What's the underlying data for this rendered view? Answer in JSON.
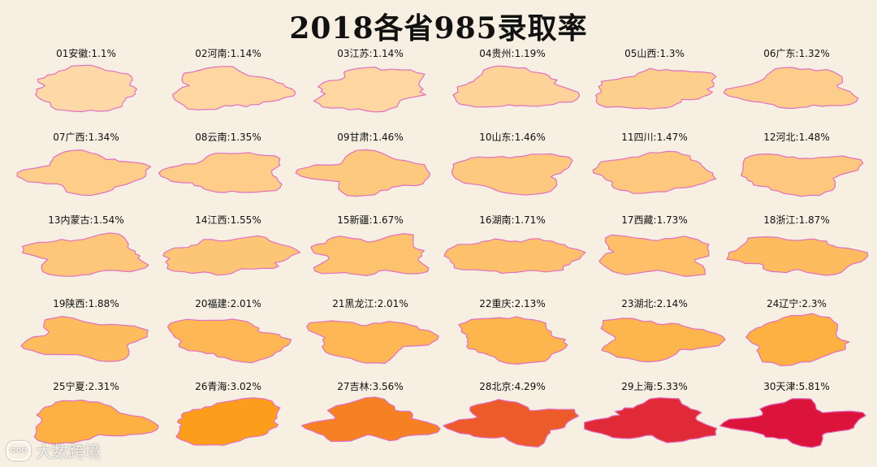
{
  "chart_data": {
    "type": "choropleth-small-multiples",
    "title": "2018各省985录取率",
    "unit": "%",
    "provinces": [
      {
        "label": "01安徽:1.1%",
        "name": "安徽",
        "value": 1.1
      },
      {
        "label": "02河南:1.14%",
        "name": "河南",
        "value": 1.14
      },
      {
        "label": "03江苏:1.14%",
        "name": "江苏",
        "value": 1.14
      },
      {
        "label": "04贵州:1.19%",
        "name": "贵州",
        "value": 1.19
      },
      {
        "label": "05山西:1.3%",
        "name": "山西",
        "value": 1.3
      },
      {
        "label": "06广东:1.32%",
        "name": "广东",
        "value": 1.32
      },
      {
        "label": "07广西:1.34%",
        "name": "广西",
        "value": 1.34
      },
      {
        "label": "08云南:1.35%",
        "name": "云南",
        "value": 1.35
      },
      {
        "label": "09甘肃:1.46%",
        "name": "甘肃",
        "value": 1.46
      },
      {
        "label": "10山东:1.46%",
        "name": "山东",
        "value": 1.46
      },
      {
        "label": "11四川:1.47%",
        "name": "四川",
        "value": 1.47
      },
      {
        "label": "12河北:1.48%",
        "name": "河北",
        "value": 1.48
      },
      {
        "label": "13内蒙古:1.54%",
        "name": "内蒙古",
        "value": 1.54
      },
      {
        "label": "14江西:1.55%",
        "name": "江西",
        "value": 1.55
      },
      {
        "label": "15新疆:1.67%",
        "name": "新疆",
        "value": 1.67
      },
      {
        "label": "16湖南:1.71%",
        "name": "湖南",
        "value": 1.71
      },
      {
        "label": "17西藏:1.73%",
        "name": "西藏",
        "value": 1.73
      },
      {
        "label": "18浙江:1.87%",
        "name": "浙江",
        "value": 1.87
      },
      {
        "label": "19陕西:1.88%",
        "name": "陕西",
        "value": 1.88
      },
      {
        "label": "20福建:2.01%",
        "name": "福建",
        "value": 2.01
      },
      {
        "label": "21黑龙江:2.01%",
        "name": "黑龙江",
        "value": 2.01
      },
      {
        "label": "22重庆:2.13%",
        "name": "重庆",
        "value": 2.13
      },
      {
        "label": "23湖北:2.14%",
        "name": "湖北",
        "value": 2.14
      },
      {
        "label": "24辽宁:2.3%",
        "name": "辽宁",
        "value": 2.3
      },
      {
        "label": "25宁夏:2.31%",
        "name": "宁夏",
        "value": 2.31
      },
      {
        "label": "26青海:3.02%",
        "name": "青海",
        "value": 3.02
      },
      {
        "label": "27吉林:3.56%",
        "name": "吉林",
        "value": 3.56
      },
      {
        "label": "28北京:4.29%",
        "name": "北京",
        "value": 4.29
      },
      {
        "label": "29上海:5.33%",
        "name": "上海",
        "value": 5.33
      },
      {
        "label": "30天津:5.81%",
        "name": "天津",
        "value": 5.81
      }
    ],
    "color_scale": {
      "low": "#fdd9a8",
      "mid": "#fda11a",
      "high": "#dc143c"
    },
    "legend": "none"
  },
  "watermark": {
    "text": "大数跨境",
    "icon": "chat-bubble-icon"
  }
}
